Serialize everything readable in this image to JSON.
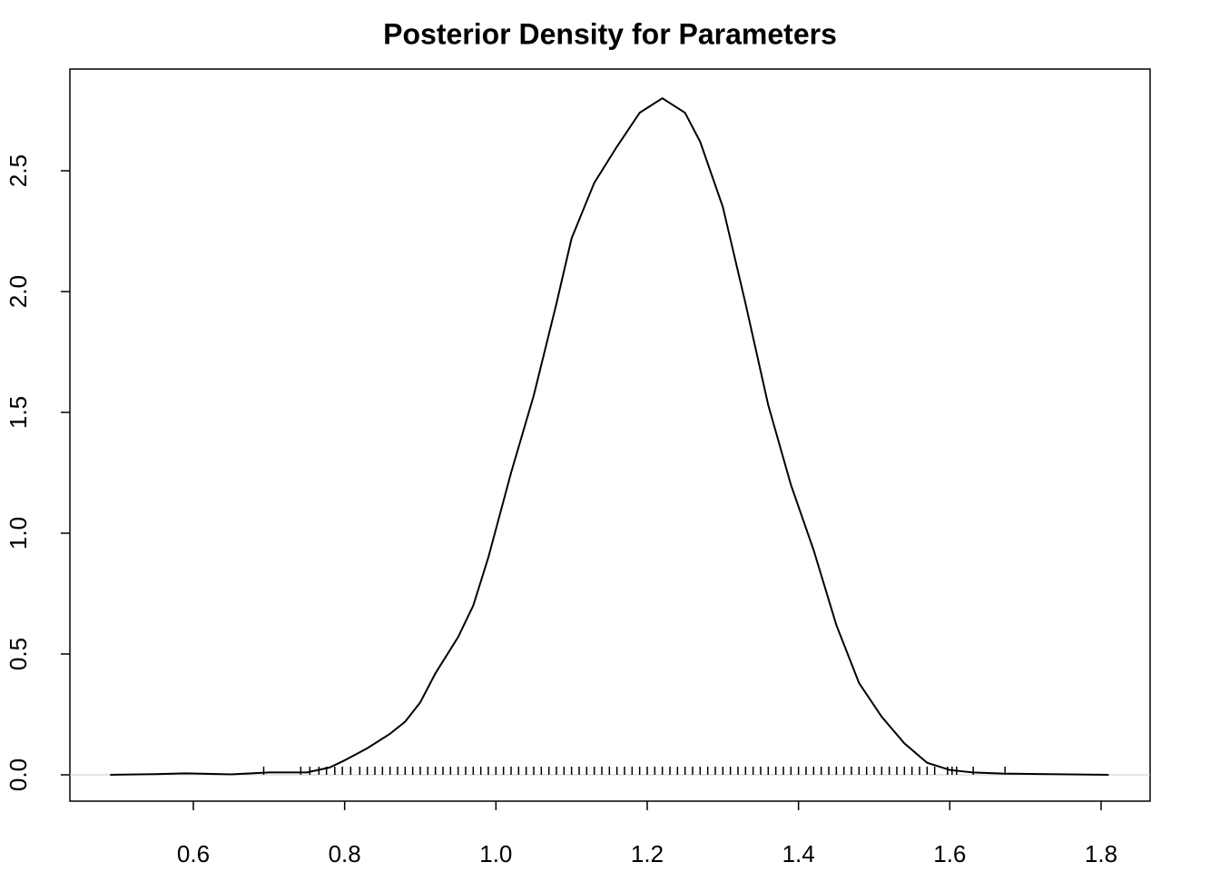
{
  "chart_data": {
    "type": "line",
    "title": "Posterior Density for Parameters",
    "x": [
      0.49,
      0.55,
      0.59,
      0.65,
      0.7,
      0.75,
      0.78,
      0.8,
      0.83,
      0.86,
      0.88,
      0.9,
      0.92,
      0.95,
      0.97,
      0.99,
      1.02,
      1.05,
      1.08,
      1.1,
      1.13,
      1.16,
      1.19,
      1.22,
      1.25,
      1.27,
      1.3,
      1.33,
      1.36,
      1.39,
      1.42,
      1.45,
      1.48,
      1.51,
      1.54,
      1.57,
      1.6,
      1.63,
      1.67,
      1.73,
      1.81
    ],
    "values": [
      0.0,
      0.003,
      0.006,
      0.002,
      0.01,
      0.01,
      0.03,
      0.06,
      0.11,
      0.17,
      0.22,
      0.3,
      0.42,
      0.57,
      0.7,
      0.9,
      1.25,
      1.57,
      1.95,
      2.22,
      2.45,
      2.6,
      2.74,
      2.8,
      2.74,
      2.62,
      2.35,
      1.95,
      1.53,
      1.2,
      0.93,
      0.62,
      0.38,
      0.24,
      0.13,
      0.05,
      0.02,
      0.01,
      0.005,
      0.003,
      0.0
    ],
    "color": "#000000",
    "rug": [
      0.693,
      0.742,
      0.754,
      0.766,
      0.776,
      0.787,
      0.797,
      0.808,
      0.82,
      0.83,
      0.84,
      0.85,
      0.86,
      0.87,
      0.88,
      0.89,
      0.9,
      0.91,
      0.92,
      0.93,
      0.94,
      0.95,
      0.96,
      0.97,
      0.98,
      0.99,
      1.0,
      1.01,
      1.02,
      1.03,
      1.04,
      1.05,
      1.06,
      1.07,
      1.08,
      1.09,
      1.1,
      1.11,
      1.12,
      1.13,
      1.14,
      1.15,
      1.16,
      1.17,
      1.18,
      1.19,
      1.2,
      1.21,
      1.22,
      1.23,
      1.24,
      1.25,
      1.26,
      1.27,
      1.28,
      1.29,
      1.3,
      1.31,
      1.32,
      1.33,
      1.34,
      1.35,
      1.36,
      1.37,
      1.38,
      1.39,
      1.4,
      1.41,
      1.42,
      1.43,
      1.44,
      1.45,
      1.46,
      1.47,
      1.48,
      1.49,
      1.5,
      1.51,
      1.52,
      1.53,
      1.54,
      1.55,
      1.56,
      1.57,
      1.58,
      1.597,
      1.603,
      1.609,
      1.631,
      1.673
    ],
    "zero_line": true,
    "zero_line_color": "#cccccc",
    "xlim": [
      0.4368,
      1.8648
    ],
    "ylim": [
      -0.109,
      2.921
    ],
    "xticks": [
      {
        "value": 0.6,
        "label": "0.6"
      },
      {
        "value": 0.8,
        "label": "0.8"
      },
      {
        "value": 1.0,
        "label": "1.0"
      },
      1.2,
      1.4,
      1.6,
      1.8
    ],
    "yticks": [
      {
        "value": 0,
        "label": "0.0"
      },
      0.5,
      {
        "value": 1,
        "label": "1.0"
      },
      1.5,
      {
        "value": 2,
        "label": "2.0"
      },
      2.5
    ]
  }
}
